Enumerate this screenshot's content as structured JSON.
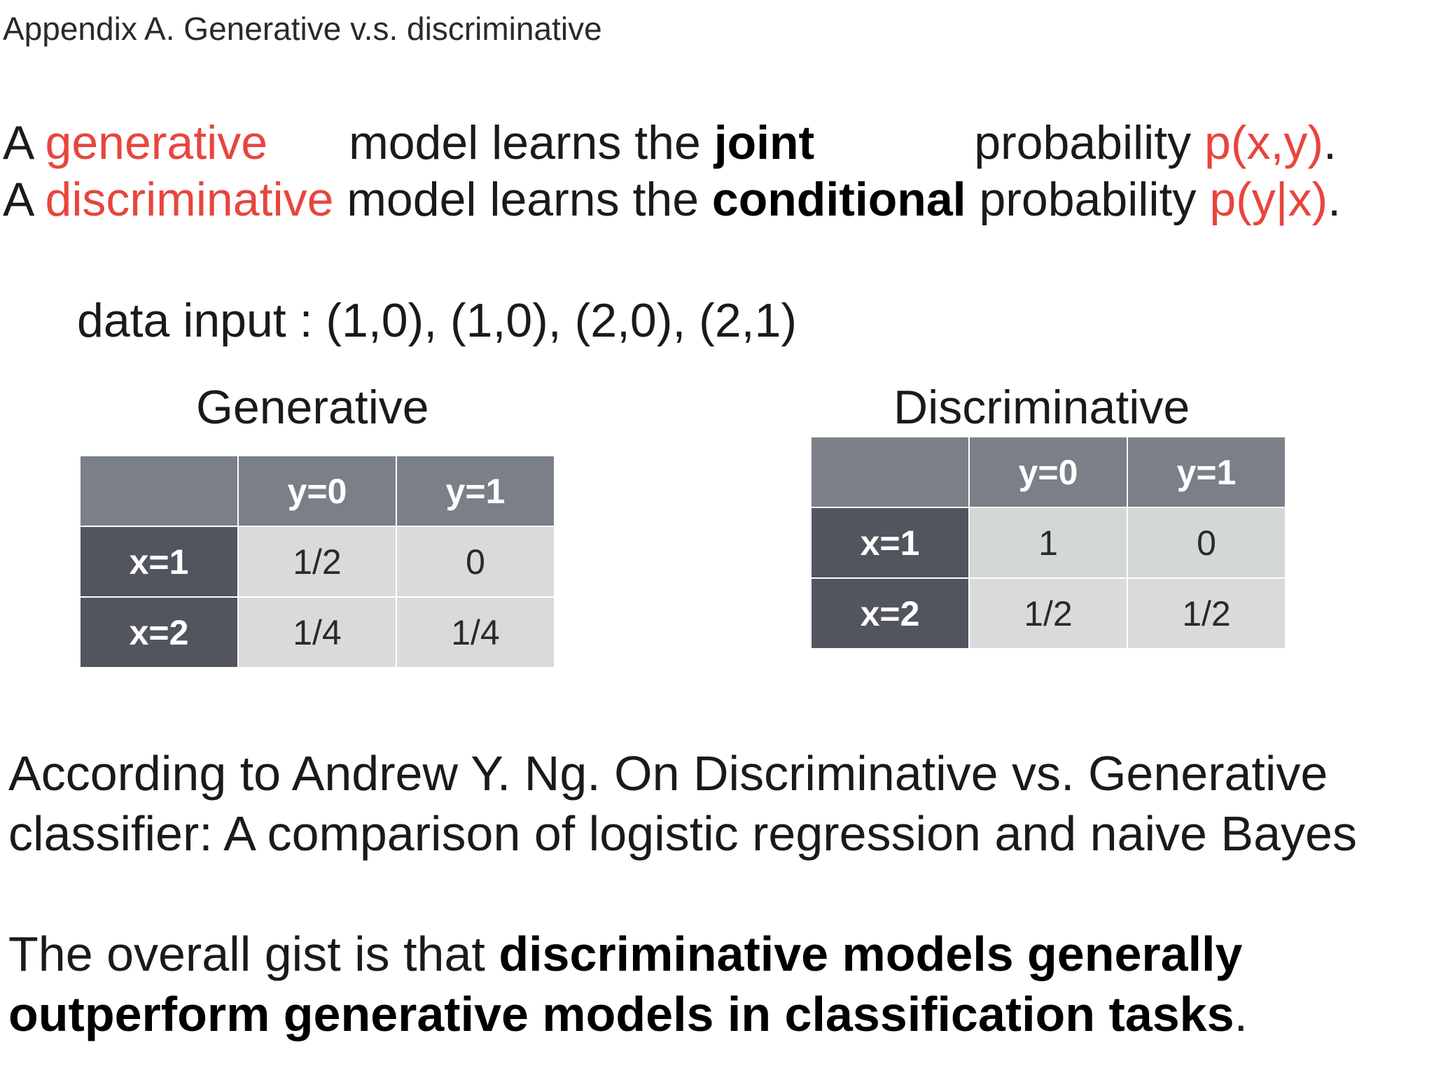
{
  "title": "Appendix A. Generative v.s. discriminative",
  "definitions": {
    "line1": {
      "prefix": "A ",
      "term": "generative",
      "middle": "model learns the ",
      "keyword": "joint",
      "suffix": "probability ",
      "prob": "p(x,y)",
      "end": "."
    },
    "line2": {
      "prefix": "A ",
      "term": "discriminative",
      "middle": " model learns the ",
      "keyword": "conditional",
      "suffix": " probability ",
      "prob": "p(y|x)",
      "end": "."
    }
  },
  "data_input": "data input : (1,0), (1,0), (2,0), (2,1)",
  "generative_table": {
    "heading": "Generative",
    "columns": [
      "y=0",
      "y=1"
    ],
    "rows": [
      {
        "label": "x=1",
        "values": [
          "1/2",
          "0"
        ]
      },
      {
        "label": "x=2",
        "values": [
          "1/4",
          "1/4"
        ]
      }
    ]
  },
  "discriminative_table": {
    "heading": "Discriminative",
    "columns": [
      "y=0",
      "y=1"
    ],
    "rows": [
      {
        "label": "x=1",
        "values": [
          "1",
          "0"
        ]
      },
      {
        "label": "x=2",
        "values": [
          "1/2",
          "1/2"
        ]
      }
    ]
  },
  "reference": {
    "line1": "According to Andrew Y. Ng. On Discriminative vs. Generative",
    "line2": "classifier: A comparison of logistic regression and naive Bayes"
  },
  "gist": {
    "prefix": "The overall gist is that ",
    "bold1": "discriminative models generally",
    "bold2": "outperform generative models in classification tasks",
    "end": "."
  },
  "colors": {
    "accent_red": "#e8453c",
    "header_gray": "#7b7f87",
    "row_head_dark": "#52555d",
    "cell_light": "#d9dadc"
  }
}
